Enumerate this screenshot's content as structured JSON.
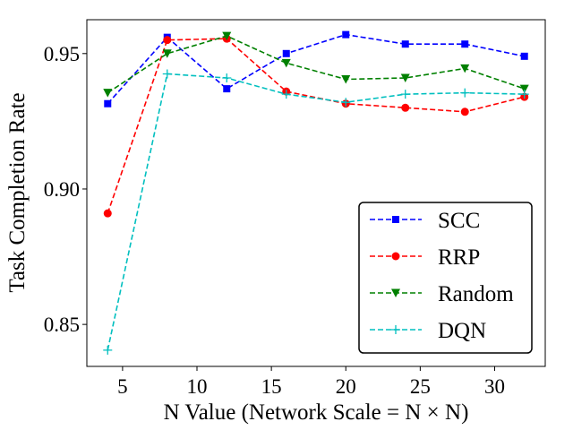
{
  "chart_data": {
    "type": "line",
    "title": "",
    "xlabel": "N Value (Network Scale = N × N)",
    "ylabel": "Task Completion Rate",
    "x": [
      4,
      8,
      12,
      16,
      20,
      24,
      28,
      32
    ],
    "xlim": [
      2.6,
      33.4
    ],
    "ylim": [
      0.8345,
      0.9625
    ],
    "xticks": [
      5,
      10,
      15,
      20,
      25,
      30
    ],
    "xtick_labels": [
      "5",
      "10",
      "15",
      "20",
      "25",
      "30"
    ],
    "yticks": [
      0.85,
      0.9,
      0.95
    ],
    "ytick_labels": [
      "0.85",
      "0.90",
      "0.95"
    ],
    "grid": false,
    "legend_position": "lower-right",
    "series": [
      {
        "name": "SCC",
        "color": "#0000ff",
        "marker": "square",
        "linestyle": "dashed",
        "values": [
          0.9315,
          0.956,
          0.937,
          0.95,
          0.957,
          0.9535,
          0.9535,
          0.949
        ]
      },
      {
        "name": "RRP",
        "color": "#ff0000",
        "marker": "circle",
        "linestyle": "dashed",
        "values": [
          0.891,
          0.955,
          0.9555,
          0.936,
          0.9315,
          0.93,
          0.9285,
          0.934
        ]
      },
      {
        "name": "Random",
        "color": "#008000",
        "marker": "triangle-down",
        "linestyle": "dashed",
        "values": [
          0.9355,
          0.95,
          0.9565,
          0.9465,
          0.9405,
          0.941,
          0.9445,
          0.937
        ]
      },
      {
        "name": "DQN",
        "color": "#00bfbf",
        "marker": "plus",
        "linestyle": "dashed",
        "values": [
          0.8405,
          0.9425,
          0.941,
          0.935,
          0.932,
          0.935,
          0.9355,
          0.935
        ]
      }
    ]
  }
}
